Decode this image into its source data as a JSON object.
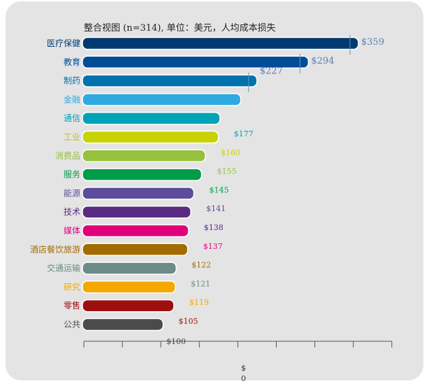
{
  "chart_data": {
    "type": "bar",
    "orientation": "horizontal",
    "title": "整合视图 (n=314), 单位：美元，人均成本损失",
    "categories": [
      "医疗保健",
      "教育",
      "制药",
      "金融",
      "通信",
      "工业",
      "消费品",
      "服务",
      "能源",
      "技术",
      "媒体",
      "酒店餐饮旅游",
      "交通运输",
      "研究",
      "零售",
      "公共"
    ],
    "values": [
      359,
      294,
      227,
      206,
      179,
      177,
      160,
      155,
      145,
      141,
      138,
      137,
      122,
      121,
      119,
      105
    ],
    "value_labels": [
      "$359",
      "$294",
      "$227",
      "",
      "",
      "$177",
      "$160",
      "$155",
      "$145",
      "$141",
      "$138",
      "$137",
      "$122",
      "$121",
      "$119",
      "$105"
    ],
    "colors": [
      "#003a70",
      "#004c97",
      "#0072ae",
      "#2eaae1",
      "#00a3b5",
      "#c6d300",
      "#96c13d",
      "#009d48",
      "#5b4d9b",
      "#5a2a82",
      "#e0007a",
      "#a46b00",
      "#6b8a88",
      "#f5a800",
      "#a00f10",
      "#4b4b4b"
    ],
    "label_colors": [
      "#003a70",
      "#004c97",
      "#0072ae",
      "#2eaae1",
      "#00a3b5",
      "#b8c400",
      "#96c13d",
      "#009d48",
      "#5b4d9b",
      "#5a2a82",
      "#e0007a",
      "#a46b00",
      "#6b8a88",
      "#f5a800",
      "#a00f10",
      "#4b4b4b"
    ],
    "axis_annotation": "$100",
    "bottom_label": [
      "$",
      "0"
    ],
    "xlim": [
      0,
      400
    ],
    "grid": false,
    "legend": "none"
  }
}
